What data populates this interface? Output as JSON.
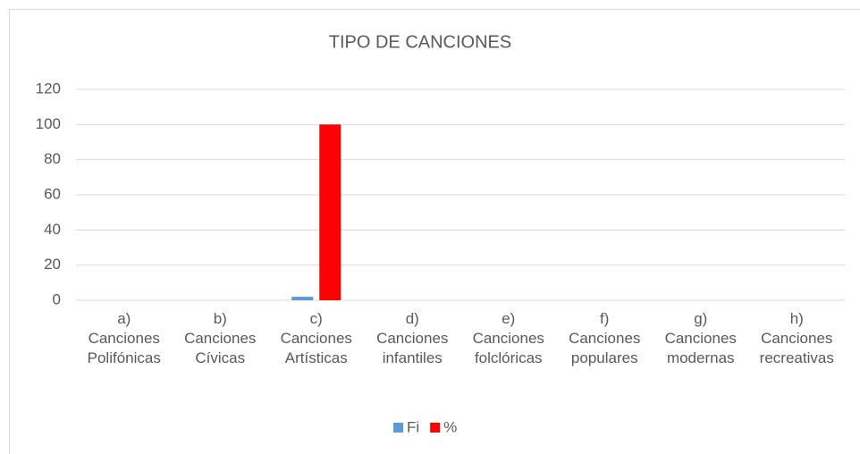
{
  "chart_data": {
    "type": "bar",
    "title": "TIPO DE CANCIONES",
    "categories": [
      "a) Canciones Polifónicas",
      "b) Canciones Cívicas",
      "c) Canciones Artísticas",
      "d) Canciones infantiles",
      "e) Canciones folclóricas",
      "f) Canciones populares",
      "g) Canciones modernas",
      "h) Canciones recreativas"
    ],
    "series": [
      {
        "name": "Fi",
        "color": "#5b9bd5",
        "values": [
          0,
          0,
          2,
          0,
          0,
          0,
          0,
          0
        ]
      },
      {
        "name": "%",
        "color": "#ff0000",
        "values": [
          0,
          0,
          100,
          0,
          0,
          0,
          0,
          0
        ]
      }
    ],
    "ylim": [
      0,
      120
    ],
    "yticks": [
      0,
      20,
      40,
      60,
      80,
      100,
      120
    ],
    "grid": true,
    "legend": "bottom"
  }
}
